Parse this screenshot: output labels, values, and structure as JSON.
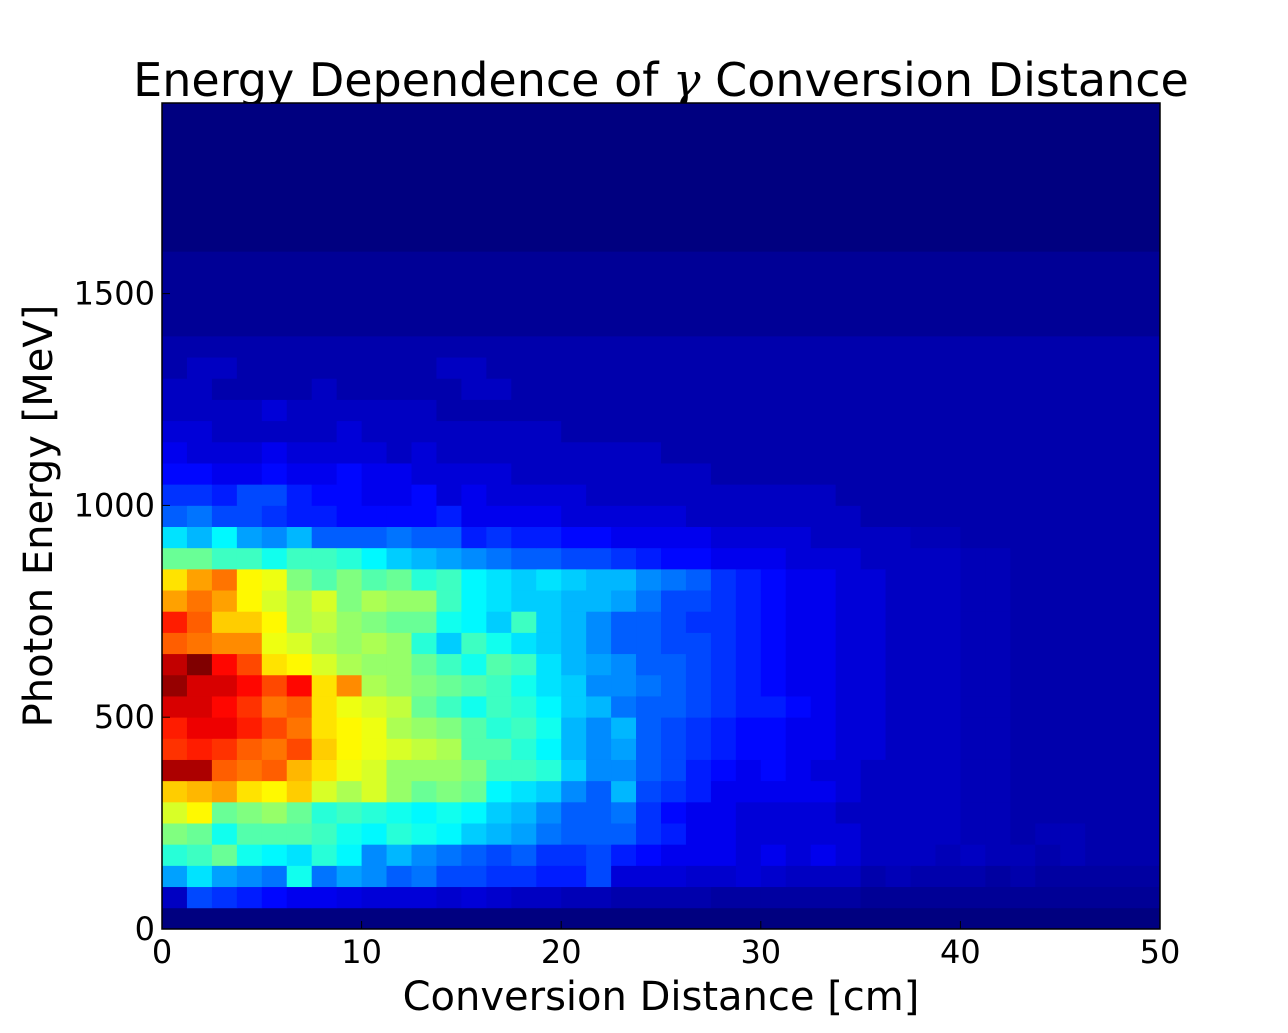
{
  "chart_data": {
    "type": "heatmap",
    "title_prefix": "Energy Dependence of ",
    "title_symbol": "γ",
    "title_suffix": " Conversion Distance",
    "xlabel": "Conversion Distance [cm]",
    "ylabel": "Photon Energy [MeV]",
    "xlim": [
      0,
      50
    ],
    "ylim": [
      0,
      1950
    ],
    "xticks": [
      0,
      10,
      20,
      30,
      40,
      50
    ],
    "yticks": [
      0,
      500,
      1000,
      1500
    ],
    "colormap": "jet",
    "grid": false,
    "x_bin_width_cm": 1.25,
    "y_bin_width_mev": 50,
    "rows_from_low_energy_bin_0_to_high_bin_38": [
      [
        0,
        0,
        0,
        0,
        0,
        0,
        0,
        0,
        0,
        0,
        0,
        0,
        0,
        0,
        0,
        0,
        0,
        0,
        0,
        0,
        0,
        0,
        0,
        0,
        0,
        0,
        0,
        0,
        0,
        0,
        0,
        0,
        0,
        0,
        0,
        0,
        0,
        0,
        0,
        0
      ],
      [
        6,
        18,
        16,
        14,
        12,
        10,
        10,
        9,
        8,
        8,
        8,
        7,
        8,
        7,
        6,
        6,
        5,
        5,
        4,
        4,
        4,
        4,
        3,
        3,
        3,
        3,
        3,
        3,
        2,
        2,
        2,
        2,
        2,
        2,
        2,
        2,
        2,
        2,
        2,
        2
      ],
      [
        26,
        32,
        26,
        24,
        22,
        36,
        22,
        26,
        24,
        20,
        22,
        18,
        18,
        16,
        16,
        14,
        14,
        18,
        8,
        8,
        8,
        7,
        7,
        8,
        7,
        6,
        6,
        6,
        4,
        5,
        4,
        4,
        4,
        3,
        4,
        3,
        3,
        3,
        3,
        3
      ],
      [
        38,
        40,
        44,
        36,
        34,
        32,
        38,
        34,
        24,
        28,
        24,
        22,
        20,
        18,
        20,
        16,
        16,
        18,
        14,
        12,
        10,
        10,
        10,
        8,
        10,
        8,
        10,
        8,
        6,
        6,
        6,
        5,
        6,
        5,
        5,
        4,
        5,
        4,
        4,
        4
      ],
      [
        46,
        44,
        36,
        42,
        42,
        42,
        40,
        36,
        34,
        38,
        36,
        34,
        30,
        28,
        26,
        22,
        20,
        20,
        20,
        16,
        14,
        10,
        10,
        8,
        8,
        8,
        8,
        8,
        6,
        6,
        6,
        6,
        5,
        5,
        4,
        5,
        5,
        4,
        4,
        4
      ],
      [
        54,
        58,
        44,
        46,
        48,
        44,
        38,
        40,
        38,
        36,
        34,
        36,
        34,
        30,
        28,
        24,
        20,
        20,
        22,
        16,
        12,
        10,
        10,
        8,
        8,
        8,
        8,
        6,
        6,
        6,
        6,
        6,
        5,
        5,
        4,
        4,
        4,
        4,
        4,
        4
      ],
      [
        62,
        64,
        66,
        60,
        58,
        62,
        54,
        50,
        54,
        48,
        44,
        46,
        44,
        34,
        32,
        30,
        24,
        20,
        28,
        18,
        16,
        14,
        10,
        10,
        10,
        10,
        10,
        8,
        6,
        6,
        6,
        6,
        5,
        5,
        4,
        4,
        4,
        4,
        4,
        4
      ],
      [
        88,
        88,
        72,
        70,
        72,
        64,
        60,
        56,
        54,
        48,
        48,
        48,
        46,
        40,
        40,
        38,
        30,
        24,
        24,
        20,
        18,
        14,
        12,
        10,
        12,
        10,
        8,
        8,
        6,
        6,
        6,
        6,
        5,
        5,
        4,
        4,
        4,
        4,
        4,
        4
      ],
      [
        76,
        78,
        76,
        72,
        70,
        74,
        62,
        58,
        56,
        54,
        52,
        50,
        42,
        42,
        38,
        34,
        28,
        24,
        26,
        20,
        18,
        16,
        14,
        12,
        12,
        10,
        10,
        8,
        8,
        6,
        6,
        6,
        5,
        5,
        4,
        4,
        4,
        4,
        4,
        4
      ],
      [
        78,
        82,
        82,
        78,
        74,
        70,
        60,
        58,
        56,
        50,
        48,
        46,
        42,
        38,
        40,
        36,
        28,
        24,
        28,
        20,
        18,
        16,
        14,
        12,
        12,
        10,
        10,
        8,
        8,
        6,
        6,
        6,
        5,
        5,
        4,
        4,
        4,
        4,
        4,
        4
      ],
      [
        84,
        84,
        80,
        76,
        70,
        72,
        60,
        56,
        54,
        52,
        44,
        40,
        36,
        40,
        38,
        34,
        30,
        28,
        22,
        20,
        20,
        18,
        16,
        14,
        14,
        12,
        10,
        8,
        8,
        6,
        6,
        6,
        5,
        5,
        4,
        4,
        4,
        4,
        4,
        4
      ],
      [
        90,
        84,
        84,
        80,
        74,
        80,
        60,
        68,
        50,
        48,
        46,
        44,
        42,
        40,
        36,
        32,
        30,
        24,
        24,
        22,
        20,
        18,
        16,
        14,
        12,
        10,
        10,
        8,
        8,
        6,
        6,
        6,
        5,
        5,
        4,
        4,
        4,
        4,
        4,
        4
      ],
      [
        86,
        92,
        80,
        74,
        60,
        58,
        54,
        50,
        48,
        48,
        44,
        40,
        36,
        42,
        40,
        32,
        28,
        26,
        24,
        20,
        20,
        18,
        16,
        14,
        12,
        10,
        10,
        8,
        8,
        6,
        6,
        6,
        5,
        5,
        4,
        4,
        4,
        4,
        4,
        4
      ],
      [
        72,
        70,
        68,
        68,
        56,
        54,
        50,
        48,
        50,
        48,
        38,
        30,
        40,
        36,
        32,
        30,
        28,
        24,
        20,
        20,
        18,
        18,
        16,
        14,
        12,
        10,
        10,
        8,
        8,
        6,
        6,
        6,
        5,
        5,
        4,
        4,
        4,
        4,
        4,
        4
      ],
      [
        78,
        72,
        62,
        62,
        58,
        50,
        52,
        48,
        46,
        44,
        44,
        36,
        34,
        30,
        40,
        30,
        28,
        24,
        20,
        20,
        18,
        16,
        16,
        14,
        12,
        10,
        10,
        8,
        8,
        6,
        6,
        6,
        5,
        5,
        4,
        4,
        4,
        4,
        4,
        4
      ],
      [
        66,
        70,
        66,
        58,
        54,
        50,
        54,
        46,
        50,
        48,
        48,
        40,
        34,
        32,
        30,
        30,
        28,
        28,
        26,
        22,
        18,
        18,
        16,
        14,
        12,
        10,
        10,
        8,
        8,
        6,
        6,
        6,
        5,
        5,
        4,
        4,
        4,
        4,
        4,
        4
      ],
      [
        60,
        66,
        70,
        58,
        56,
        46,
        42,
        46,
        42,
        44,
        38,
        40,
        34,
        32,
        30,
        32,
        30,
        28,
        28,
        24,
        22,
        20,
        16,
        14,
        12,
        10,
        10,
        8,
        8,
        6,
        6,
        6,
        5,
        5,
        4,
        4,
        4,
        4,
        4,
        4
      ],
      [
        44,
        44,
        40,
        40,
        36,
        40,
        40,
        38,
        34,
        30,
        28,
        26,
        24,
        22,
        20,
        20,
        18,
        18,
        16,
        14,
        12,
        12,
        10,
        10,
        10,
        8,
        8,
        8,
        6,
        6,
        6,
        6,
        5,
        5,
        4,
        4,
        4,
        4,
        4,
        4
      ],
      [
        32,
        28,
        34,
        26,
        24,
        28,
        20,
        20,
        20,
        22,
        20,
        20,
        14,
        16,
        14,
        14,
        12,
        12,
        10,
        10,
        10,
        10,
        8,
        8,
        8,
        8,
        6,
        6,
        6,
        6,
        5,
        5,
        4,
        4,
        4,
        4,
        4,
        4,
        4,
        4
      ],
      [
        20,
        22,
        18,
        18,
        16,
        14,
        14,
        12,
        12,
        12,
        12,
        14,
        10,
        10,
        10,
        10,
        8,
        8,
        8,
        8,
        8,
        6,
        6,
        6,
        6,
        6,
        6,
        6,
        4,
        4,
        4,
        4,
        4,
        4,
        4,
        4,
        4,
        4,
        4,
        4
      ],
      [
        16,
        16,
        14,
        18,
        18,
        14,
        12,
        12,
        10,
        10,
        12,
        8,
        10,
        8,
        8,
        8,
        8,
        6,
        6,
        6,
        6,
        6,
        6,
        6,
        6,
        6,
        6,
        4,
        4,
        4,
        4,
        4,
        4,
        4,
        4,
        4,
        4,
        4,
        4,
        4
      ],
      [
        12,
        12,
        10,
        10,
        12,
        10,
        10,
        12,
        10,
        10,
        8,
        8,
        8,
        8,
        6,
        6,
        6,
        6,
        6,
        6,
        6,
        6,
        4,
        4,
        4,
        4,
        4,
        4,
        4,
        4,
        4,
        4,
        4,
        4,
        4,
        4,
        4,
        4,
        4,
        4
      ],
      [
        10,
        8,
        8,
        8,
        10,
        8,
        8,
        8,
        8,
        6,
        8,
        6,
        6,
        6,
        6,
        6,
        6,
        6,
        6,
        6,
        4,
        4,
        4,
        4,
        4,
        4,
        4,
        4,
        4,
        4,
        4,
        4,
        4,
        4,
        4,
        4,
        4,
        4,
        4,
        4
      ],
      [
        8,
        8,
        6,
        6,
        6,
        6,
        6,
        8,
        6,
        6,
        6,
        6,
        6,
        6,
        6,
        6,
        4,
        4,
        4,
        4,
        4,
        4,
        4,
        4,
        4,
        4,
        4,
        4,
        4,
        4,
        4,
        4,
        4,
        4,
        4,
        4,
        4,
        4,
        4,
        4
      ],
      [
        6,
        6,
        6,
        6,
        8,
        6,
        6,
        6,
        6,
        6,
        6,
        4,
        4,
        4,
        4,
        4,
        4,
        4,
        4,
        4,
        4,
        4,
        4,
        4,
        4,
        4,
        4,
        4,
        4,
        4,
        4,
        4,
        4,
        4,
        4,
        4,
        4,
        4,
        4,
        4
      ],
      [
        6,
        6,
        4,
        4,
        4,
        4,
        6,
        4,
        4,
        4,
        4,
        4,
        6,
        6,
        4,
        4,
        4,
        4,
        4,
        4,
        4,
        4,
        4,
        4,
        4,
        4,
        4,
        4,
        4,
        4,
        4,
        4,
        4,
        4,
        4,
        4,
        4,
        4,
        4,
        4
      ],
      [
        4,
        6,
        6,
        4,
        4,
        4,
        4,
        4,
        4,
        4,
        4,
        6,
        6,
        4,
        4,
        4,
        4,
        4,
        4,
        4,
        4,
        4,
        4,
        4,
        4,
        4,
        4,
        4,
        4,
        4,
        4,
        4,
        4,
        4,
        4,
        4,
        4,
        4,
        4,
        4
      ],
      [
        4,
        4,
        4,
        4,
        4,
        4,
        4,
        4,
        4,
        4,
        4,
        4,
        4,
        4,
        4,
        4,
        4,
        4,
        4,
        4,
        4,
        4,
        4,
        4,
        4,
        4,
        4,
        4,
        4,
        4,
        4,
        4,
        4,
        4,
        4,
        4,
        4,
        4,
        4,
        4
      ],
      [
        2,
        2,
        2,
        2,
        2,
        2,
        2,
        2,
        2,
        2,
        2,
        2,
        2,
        2,
        2,
        2,
        2,
        2,
        2,
        2,
        2,
        2,
        2,
        2,
        2,
        2,
        2,
        2,
        2,
        2,
        2,
        2,
        2,
        2,
        2,
        2,
        2,
        2,
        2,
        2
      ],
      [
        2,
        2,
        2,
        2,
        2,
        2,
        2,
        2,
        2,
        2,
        2,
        2,
        2,
        2,
        2,
        2,
        2,
        2,
        2,
        2,
        2,
        2,
        2,
        2,
        2,
        2,
        2,
        2,
        2,
        2,
        2,
        2,
        2,
        2,
        2,
        2,
        2,
        2,
        2,
        2
      ],
      [
        2,
        2,
        2,
        2,
        2,
        2,
        2,
        2,
        2,
        2,
        2,
        2,
        2,
        2,
        2,
        2,
        2,
        2,
        2,
        2,
        2,
        2,
        2,
        2,
        2,
        2,
        2,
        2,
        2,
        2,
        2,
        2,
        2,
        2,
        2,
        2,
        2,
        2,
        2,
        2
      ],
      [
        2,
        2,
        2,
        2,
        2,
        2,
        2,
        2,
        2,
        2,
        2,
        2,
        2,
        2,
        2,
        2,
        2,
        2,
        2,
        2,
        2,
        2,
        2,
        2,
        2,
        2,
        2,
        2,
        2,
        2,
        2,
        2,
        2,
        2,
        2,
        2,
        2,
        2,
        2,
        2
      ],
      [
        0,
        0,
        0,
        0,
        0,
        0,
        0,
        0,
        0,
        0,
        0,
        0,
        0,
        0,
        0,
        0,
        0,
        0,
        0,
        0,
        0,
        0,
        0,
        0,
        0,
        0,
        0,
        0,
        0,
        0,
        0,
        0,
        0,
        0,
        0,
        0,
        0,
        0,
        0,
        0
      ],
      [
        0,
        0,
        0,
        0,
        0,
        0,
        0,
        0,
        0,
        0,
        0,
        0,
        0,
        0,
        0,
        0,
        0,
        0,
        0,
        0,
        0,
        0,
        0,
        0,
        0,
        0,
        0,
        0,
        0,
        0,
        0,
        0,
        0,
        0,
        0,
        0,
        0,
        0,
        0,
        0
      ],
      [
        0,
        0,
        0,
        0,
        0,
        0,
        0,
        0,
        0,
        0,
        0,
        0,
        0,
        0,
        0,
        0,
        0,
        0,
        0,
        0,
        0,
        0,
        0,
        0,
        0,
        0,
        0,
        0,
        0,
        0,
        0,
        0,
        0,
        0,
        0,
        0,
        0,
        0,
        0,
        0
      ],
      [
        0,
        0,
        0,
        0,
        0,
        0,
        0,
        0,
        0,
        0,
        0,
        0,
        0,
        0,
        0,
        0,
        0,
        0,
        0,
        0,
        0,
        0,
        0,
        0,
        0,
        0,
        0,
        0,
        0,
        0,
        0,
        0,
        0,
        0,
        0,
        0,
        0,
        0,
        0,
        0
      ],
      [
        0,
        0,
        0,
        0,
        0,
        0,
        0,
        0,
        0,
        0,
        0,
        0,
        0,
        0,
        0,
        0,
        0,
        0,
        0,
        0,
        0,
        0,
        0,
        0,
        0,
        0,
        0,
        0,
        0,
        0,
        0,
        0,
        0,
        0,
        0,
        0,
        0,
        0,
        0,
        0
      ],
      [
        0,
        0,
        0,
        0,
        0,
        0,
        0,
        0,
        0,
        0,
        0,
        0,
        0,
        0,
        0,
        0,
        0,
        0,
        0,
        0,
        0,
        0,
        0,
        0,
        0,
        0,
        0,
        0,
        0,
        0,
        0,
        0,
        0,
        0,
        0,
        0,
        0,
        0,
        0,
        0
      ],
      [
        0,
        0,
        0,
        0,
        0,
        0,
        0,
        0,
        0,
        0,
        0,
        0,
        0,
        0,
        0,
        0,
        0,
        0,
        0,
        0,
        0,
        0,
        0,
        0,
        0,
        0,
        0,
        0,
        0,
        0,
        0,
        0,
        0,
        0,
        0,
        0,
        0,
        0,
        0,
        0
      ]
    ],
    "value_max": 92
  }
}
